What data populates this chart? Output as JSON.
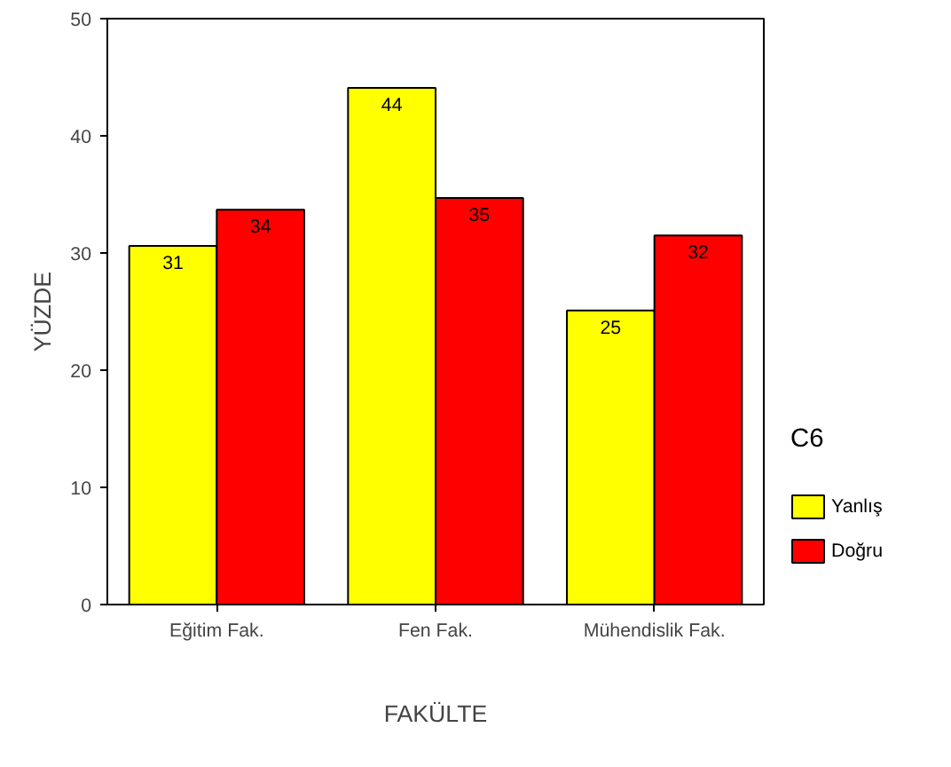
{
  "chart_data": {
    "type": "bar",
    "xlabel": "FAKÜLTE",
    "ylabel": "YÜZDE",
    "legend_title": "C6",
    "categories": [
      "Eğitim Fak.",
      "Fen Fak.",
      "Mühendislik Fak."
    ],
    "series": [
      {
        "name": "Yanlış",
        "color": "#ffff00",
        "values": [
          30.6,
          44.1,
          25.1
        ],
        "value_labels": [
          "31",
          "44",
          "25"
        ]
      },
      {
        "name": "Doğru",
        "color": "#ff0000",
        "values": [
          33.7,
          34.7,
          31.5
        ],
        "value_labels": [
          "34",
          "35",
          "32"
        ]
      }
    ],
    "ylim": [
      0,
      50
    ],
    "yticks": [
      0,
      10,
      20,
      30,
      40,
      50
    ],
    "grid": false,
    "legend": "right"
  }
}
